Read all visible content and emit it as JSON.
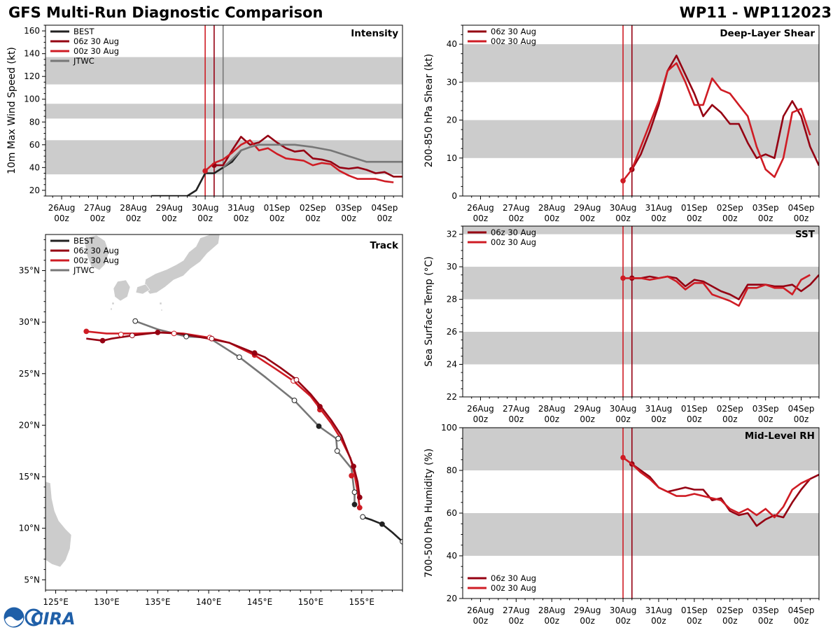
{
  "title": "GFS Multi-Run Diagnostic Comparison",
  "storm_id": "WP11 - WP112023",
  "logo_text": "CIRA",
  "colors": {
    "best": "#222222",
    "run06": "#950012",
    "run00": "#cf1c24",
    "jtwc": "#777777",
    "band": "#cccccc",
    "land": "#cccccc"
  },
  "time_ticks": [
    {
      "day": "26Aug",
      "hour": "00z",
      "t": 0
    },
    {
      "day": "27Aug",
      "hour": "00z",
      "t": 1
    },
    {
      "day": "28Aug",
      "hour": "00z",
      "t": 2
    },
    {
      "day": "29Aug",
      "hour": "00z",
      "t": 3
    },
    {
      "day": "30Aug",
      "hour": "00z",
      "t": 4
    },
    {
      "day": "31Aug",
      "hour": "00z",
      "t": 5
    },
    {
      "day": "01Sep",
      "hour": "00z",
      "t": 6
    },
    {
      "day": "02Sep",
      "hour": "00z",
      "t": 7
    },
    {
      "day": "03Sep",
      "hour": "00z",
      "t": 8
    },
    {
      "day": "04Sep",
      "hour": "00z",
      "t": 9
    }
  ],
  "chart_data": [
    {
      "id": "intensity",
      "type": "line",
      "title": "Intensity",
      "ylabel": "10m Max Wind Speed (kt)",
      "xlim": [
        -0.45,
        9.5
      ],
      "ylim": [
        15,
        165
      ],
      "yticks": [
        20,
        40,
        60,
        80,
        100,
        120,
        140,
        160
      ],
      "bands": [
        [
          34,
          64
        ],
        [
          83,
          96
        ],
        [
          113,
          137
        ]
      ],
      "vlines": [
        4.0,
        4.25,
        4.5
      ],
      "series": [
        {
          "name": "BEST",
          "key": "best",
          "start_dot": false,
          "x": [
            2.5,
            2.75,
            3.0,
            3.25,
            3.5,
            3.75,
            4.0,
            4.25,
            4.5,
            4.75,
            5.0
          ],
          "y": [
            15,
            15,
            15,
            15,
            15,
            20,
            35,
            35,
            40,
            45,
            55
          ]
        },
        {
          "name": "06z 30 Aug",
          "key": "run06",
          "start_dot": true,
          "x": [
            4.25,
            4.5,
            4.75,
            5.0,
            5.25,
            5.5,
            5.75,
            6.0,
            6.25,
            6.5,
            6.75,
            7.0,
            7.25,
            7.5,
            7.75,
            8.0,
            8.25,
            8.5,
            8.75,
            9.0,
            9.25,
            9.5
          ],
          "y": [
            42,
            42,
            55,
            67,
            60,
            62,
            68,
            62,
            57,
            54,
            55,
            48,
            47,
            45,
            40,
            39,
            40,
            38,
            35,
            36,
            32,
            32
          ]
        },
        {
          "name": "00z 30 Aug",
          "key": "run00",
          "start_dot": true,
          "x": [
            4.0,
            4.25,
            4.5,
            4.75,
            5.0,
            5.25,
            5.5,
            5.75,
            6.0,
            6.25,
            6.5,
            6.75,
            7.0,
            7.25,
            7.5,
            7.75,
            8.0,
            8.25,
            8.5,
            8.75,
            9.0,
            9.25
          ],
          "y": [
            37,
            44,
            47,
            53,
            60,
            64,
            55,
            57,
            52,
            48,
            47,
            46,
            42,
            44,
            43,
            37,
            33,
            30,
            30,
            30,
            28,
            27
          ]
        },
        {
          "name": "JTWC",
          "key": "jtwc",
          "start_dot": false,
          "x": [
            4.5,
            4.75,
            5.0,
            5.25,
            5.5,
            5.75,
            6.0,
            6.5,
            7.0,
            7.5,
            8.0,
            8.5,
            9.0,
            9.5
          ],
          "y": [
            40,
            47,
            55,
            58,
            60,
            60,
            60,
            60,
            58,
            55,
            50,
            45,
            45,
            45
          ]
        }
      ]
    },
    {
      "id": "shear",
      "type": "line",
      "title": "Deep-Layer Shear",
      "ylabel": "200-850 hPa Shear (kt)",
      "xlim": [
        -0.5,
        9.5
      ],
      "ylim": [
        0,
        45
      ],
      "yticks": [
        0,
        10,
        20,
        30,
        40
      ],
      "bands": [
        [
          10,
          20
        ],
        [
          30,
          40
        ]
      ],
      "vlines": [
        4.0,
        4.25
      ],
      "series": [
        {
          "name": "06z 30 Aug",
          "key": "run06",
          "start_dot": true,
          "x": [
            4.25,
            4.5,
            4.75,
            5.0,
            5.25,
            5.5,
            5.75,
            6.0,
            6.25,
            6.5,
            6.75,
            7.0,
            7.25,
            7.5,
            7.75,
            8.0,
            8.25,
            8.5,
            8.75,
            9.0,
            9.25,
            9.5
          ],
          "y": [
            7,
            11,
            17,
            24,
            33,
            37,
            32,
            27,
            21,
            24,
            22,
            19,
            19,
            14,
            10,
            11,
            10,
            21,
            25,
            21,
            13,
            8
          ]
        },
        {
          "name": "00z 30 Aug",
          "key": "run00",
          "start_dot": true,
          "x": [
            4.0,
            4.25,
            4.5,
            4.75,
            5.0,
            5.25,
            5.5,
            5.75,
            6.0,
            6.25,
            6.5,
            6.75,
            7.0,
            7.25,
            7.5,
            7.75,
            8.0,
            8.25,
            8.5,
            8.75,
            9.0,
            9.25
          ],
          "y": [
            4,
            7,
            13,
            19,
            25,
            33,
            35,
            30,
            24,
            24,
            31,
            28,
            27,
            24,
            21,
            13,
            7,
            5,
            10,
            22,
            23,
            16
          ]
        }
      ]
    },
    {
      "id": "sst",
      "type": "line",
      "title": "SST",
      "ylabel": "Sea Surface Temp (°C)",
      "xlim": [
        -0.5,
        9.5
      ],
      "ylim": [
        22,
        32.5
      ],
      "yticks": [
        22,
        24,
        26,
        28,
        30,
        32
      ],
      "bands": [
        [
          24,
          26
        ],
        [
          28,
          30
        ],
        [
          32,
          34
        ]
      ],
      "vlines": [
        4.0,
        4.25
      ],
      "series": [
        {
          "name": "06z 30 Aug",
          "key": "run06",
          "start_dot": true,
          "x": [
            4.25,
            4.5,
            4.75,
            5.0,
            5.25,
            5.5,
            5.75,
            6.0,
            6.25,
            6.5,
            6.75,
            7.0,
            7.25,
            7.5,
            7.75,
            8.0,
            8.25,
            8.5,
            8.75,
            9.0,
            9.25,
            9.5
          ],
          "y": [
            29.3,
            29.3,
            29.4,
            29.3,
            29.4,
            29.3,
            28.8,
            29.2,
            29.1,
            28.8,
            28.5,
            28.3,
            28.0,
            28.9,
            28.9,
            28.9,
            28.8,
            28.8,
            28.9,
            28.5,
            28.9,
            29.5
          ]
        },
        {
          "name": "00z 30 Aug",
          "key": "run00",
          "start_dot": true,
          "x": [
            4.0,
            4.25,
            4.5,
            4.75,
            5.0,
            5.25,
            5.5,
            5.75,
            6.0,
            6.25,
            6.5,
            6.75,
            7.0,
            7.25,
            7.5,
            7.75,
            8.0,
            8.25,
            8.5,
            8.75,
            9.0,
            9.25
          ],
          "y": [
            29.3,
            29.3,
            29.3,
            29.2,
            29.3,
            29.4,
            29.1,
            28.6,
            29.0,
            29.0,
            28.3,
            28.1,
            27.9,
            27.6,
            28.7,
            28.7,
            28.9,
            28.7,
            28.7,
            28.3,
            29.2,
            29.5
          ]
        }
      ]
    },
    {
      "id": "rh",
      "type": "line",
      "title": "Mid-Level RH",
      "ylabel": "700-500 hPa Humidity (%)",
      "xlim": [
        -0.5,
        9.5
      ],
      "ylim": [
        20,
        100
      ],
      "yticks": [
        20,
        40,
        60,
        80,
        100
      ],
      "bands": [
        [
          40,
          60
        ],
        [
          80,
          100
        ]
      ],
      "vlines": [
        4.0,
        4.25
      ],
      "legend_pos": "bottom-left",
      "series": [
        {
          "name": "06z 30 Aug",
          "key": "run06",
          "start_dot": true,
          "x": [
            4.25,
            4.5,
            4.75,
            5.0,
            5.25,
            5.5,
            5.75,
            6.0,
            6.25,
            6.5,
            6.75,
            7.0,
            7.25,
            7.5,
            7.75,
            8.0,
            8.25,
            8.5,
            8.75,
            9.0,
            9.25,
            9.5
          ],
          "y": [
            83,
            80,
            77,
            72,
            70,
            71,
            72,
            71,
            71,
            66,
            67,
            61,
            59,
            60,
            54,
            57,
            59,
            58,
            65,
            71,
            76,
            78
          ]
        },
        {
          "name": "00z 30 Aug",
          "key": "run00",
          "start_dot": true,
          "x": [
            4.0,
            4.25,
            4.5,
            4.75,
            5.0,
            5.25,
            5.5,
            5.75,
            6.0,
            6.25,
            6.5,
            6.75,
            7.0,
            7.25,
            7.5,
            7.75,
            8.0,
            8.25,
            8.5,
            8.75,
            9.0,
            9.25
          ],
          "y": [
            86,
            83,
            79,
            76,
            72,
            70,
            68,
            68,
            69,
            68,
            67,
            66,
            62,
            60,
            62,
            59,
            62,
            58,
            63,
            71,
            74,
            76
          ]
        }
      ]
    },
    {
      "id": "track",
      "type": "scatter",
      "title": "Track",
      "xlim": [
        124,
        159
      ],
      "ylim": [
        4,
        38.5
      ],
      "xticks": [
        125,
        130,
        135,
        140,
        145,
        150,
        155
      ],
      "yticks": [
        5,
        10,
        15,
        20,
        25,
        30,
        35
      ],
      "xtick_labels": [
        "125°E",
        "130°E",
        "135°E",
        "140°E",
        "145°E",
        "150°E",
        "155°E"
      ],
      "ytick_labels": [
        "5°N",
        "10°N",
        "15°N",
        "20°N",
        "25°N",
        "30°N",
        "35°N"
      ],
      "series": [
        {
          "name": "BEST",
          "key": "best",
          "lon": [
            159.0,
            158.0,
            157.0,
            156.0,
            155.1
          ],
          "lat": [
            8.7,
            9.6,
            10.4,
            10.8,
            11.1
          ],
          "markers": [
            [
              159.0,
              8.7,
              "open"
            ],
            [
              157.0,
              10.4,
              "filled"
            ],
            [
              155.1,
              11.1,
              "open"
            ]
          ]
        },
        {
          "name": "06z 30 Aug",
          "key": "run06",
          "lon": [
            154.8,
            154.6,
            154.2,
            153.8,
            153.0,
            152.0,
            151.0,
            150.0,
            148.5,
            147.0,
            145.5,
            144.5,
            142.0,
            140.0,
            137.0,
            135.0,
            132.5,
            130.5,
            129.6,
            128.0
          ],
          "lat": [
            13.0,
            14.5,
            16.0,
            17.0,
            19.0,
            20.5,
            21.8,
            23.0,
            24.5,
            25.6,
            26.6,
            27.0,
            28.0,
            28.4,
            28.9,
            29.0,
            28.7,
            28.4,
            28.2,
            28.4
          ],
          "markers": [
            [
              154.8,
              13.0,
              "filled"
            ],
            [
              154.2,
              16.0,
              "filled"
            ],
            [
              150.9,
              21.8,
              "filled"
            ],
            [
              148.6,
              24.4,
              "open"
            ],
            [
              144.5,
              27.0,
              "filled"
            ],
            [
              140.3,
              28.4,
              "open"
            ],
            [
              135.0,
              29.0,
              "filled"
            ],
            [
              132.5,
              28.7,
              "open"
            ],
            [
              129.6,
              28.2,
              "filled"
            ]
          ]
        },
        {
          "name": "00z 30 Aug",
          "key": "run00",
          "lon": [
            154.8,
            154.6,
            154.3,
            153.9,
            153.0,
            152.0,
            151.0,
            150.0,
            148.3,
            146.5,
            144.5,
            142.0,
            140.0,
            137.5,
            135.5,
            133.0,
            130.0,
            128.0
          ],
          "lat": [
            12.0,
            13.5,
            15.2,
            16.8,
            18.6,
            20.2,
            21.5,
            22.8,
            24.3,
            25.5,
            26.8,
            28.0,
            28.5,
            28.9,
            29.0,
            28.9,
            28.9,
            29.1
          ],
          "markers": [
            [
              154.8,
              12.0,
              "filled"
            ],
            [
              154.0,
              15.1,
              "filled"
            ],
            [
              150.9,
              21.5,
              "filled"
            ],
            [
              148.3,
              24.3,
              "open"
            ],
            [
              144.5,
              26.8,
              "filled"
            ],
            [
              140.1,
              28.5,
              "open"
            ],
            [
              136.6,
              28.9,
              "open"
            ],
            [
              131.4,
              28.8,
              "open"
            ],
            [
              128.0,
              29.1,
              "filled"
            ]
          ]
        },
        {
          "name": "JTWC",
          "key": "jtwc",
          "lon": [
            154.3,
            154.3,
            154.0,
            152.6,
            152.5,
            150.8,
            148.4,
            145.5,
            143.0,
            140.0,
            137.8,
            135.0,
            132.8
          ],
          "lat": [
            12.3,
            13.3,
            15.8,
            17.5,
            18.7,
            19.9,
            22.4,
            24.7,
            26.6,
            28.5,
            28.6,
            29.3,
            30.1
          ],
          "markers": [
            [
              154.3,
              12.3,
              "filled"
            ],
            [
              154.3,
              13.5,
              "open"
            ],
            [
              152.6,
              17.5,
              "open"
            ],
            [
              152.7,
              18.7,
              "open"
            ],
            [
              150.8,
              19.9,
              "filled"
            ],
            [
              148.4,
              22.4,
              "open"
            ],
            [
              143.0,
              26.6,
              "open"
            ],
            [
              137.8,
              28.6,
              "open"
            ],
            [
              132.8,
              30.1,
              "open"
            ]
          ]
        }
      ]
    }
  ]
}
